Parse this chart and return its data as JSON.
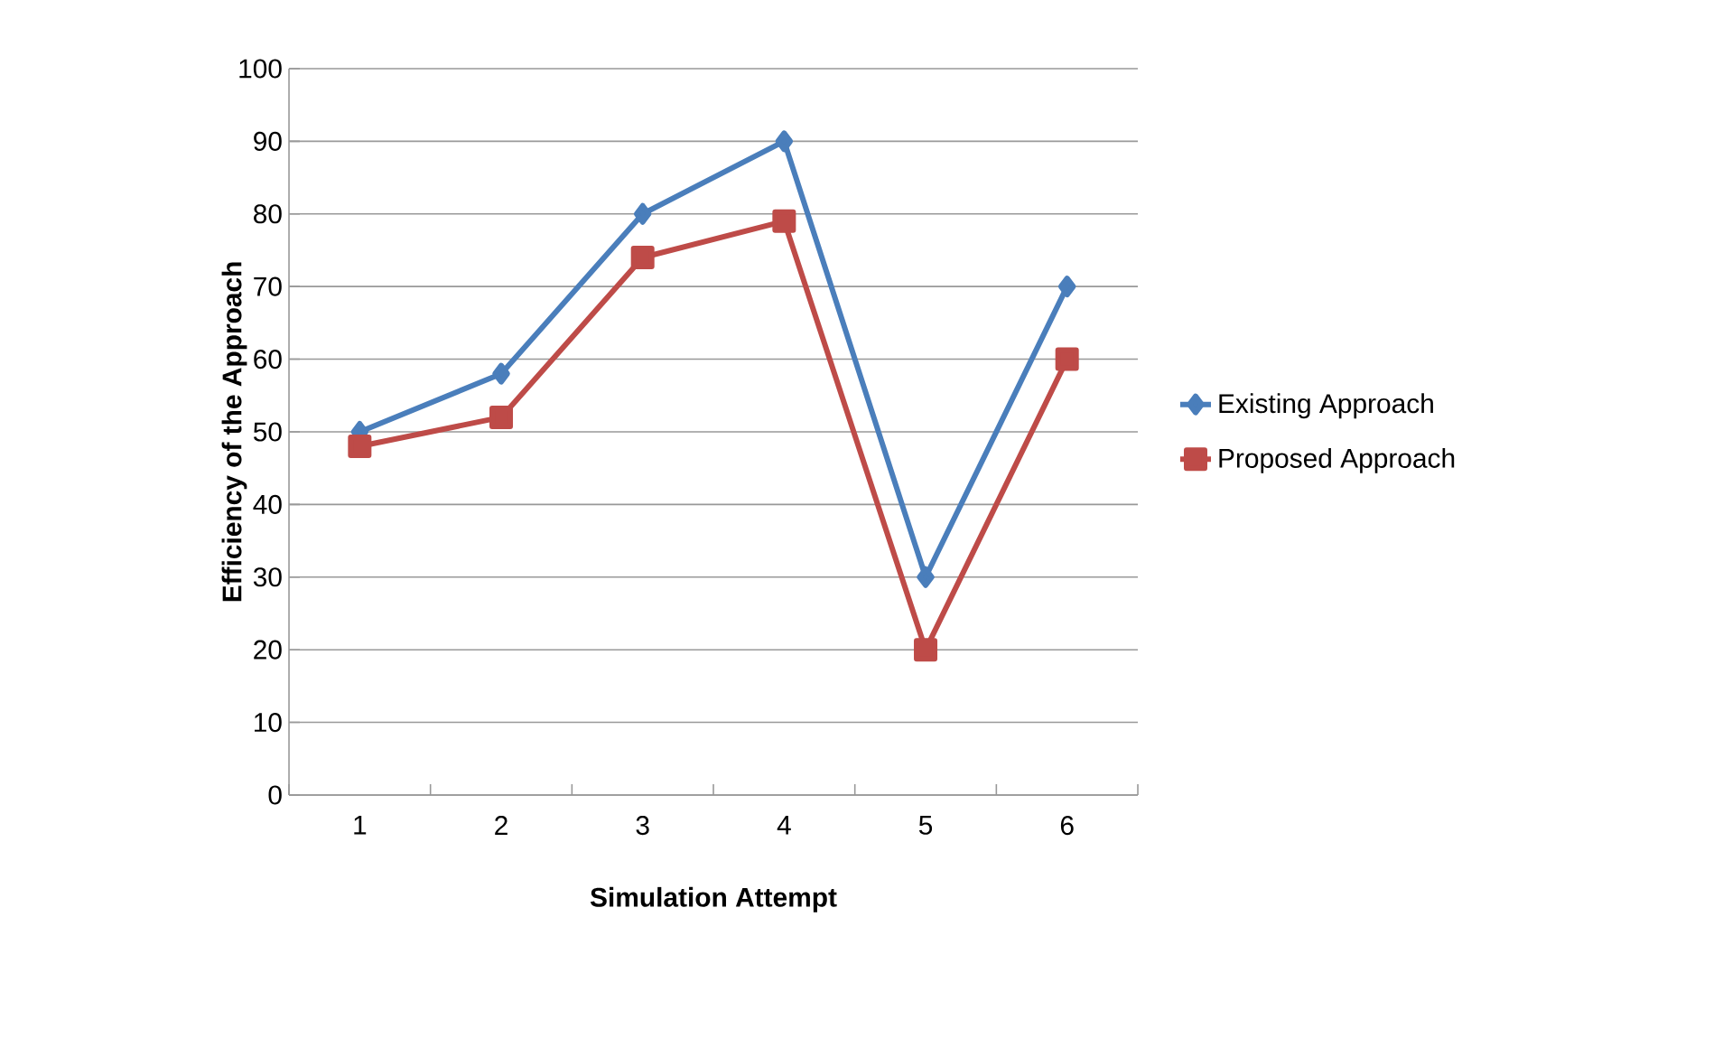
{
  "chart_data": {
    "type": "line",
    "xlabel": "Simulation Attempt",
    "ylabel": "Efficiency of the Approach",
    "categories": [
      "1",
      "2",
      "3",
      "4",
      "5",
      "6"
    ],
    "series": [
      {
        "name": "Existing Approach",
        "color": "#4a7ebb",
        "marker": "diamond",
        "values": [
          50,
          58,
          80,
          90,
          30,
          70
        ]
      },
      {
        "name": "Proposed Approach",
        "color": "#be4b48",
        "marker": "square",
        "values": [
          48,
          52,
          74,
          79,
          20,
          60
        ]
      }
    ],
    "ylim": [
      0,
      100
    ],
    "yticks": [
      0,
      10,
      20,
      30,
      40,
      50,
      60,
      70,
      80,
      90,
      100
    ],
    "grid": "y",
    "legend": "right",
    "line_style": "solid"
  }
}
